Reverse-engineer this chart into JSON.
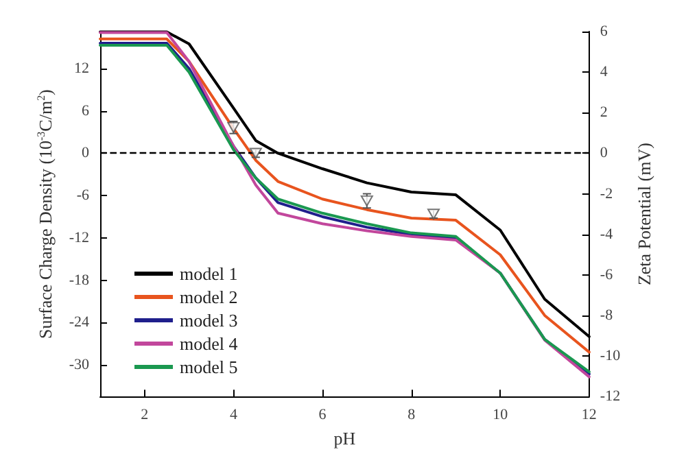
{
  "chart_data": {
    "type": "line",
    "xlabel": "pH",
    "ylabel": "Surface Charge Density (10$^{-3}$C/m$^{2}$)",
    "y2label": "Zeta Potential (mV)",
    "xlim": [
      1,
      12
    ],
    "xticks": [
      2,
      4,
      6,
      8,
      10,
      12
    ],
    "ylim": [
      -34.5,
      17.25
    ],
    "yticks": [
      -30,
      -24,
      -18,
      -12,
      -6,
      0,
      6,
      12
    ],
    "y2lim": [
      -12,
      6
    ],
    "y2ticks": [
      -12,
      -10,
      -8,
      -6,
      -4,
      -2,
      0,
      2,
      4,
      6
    ],
    "x": [
      1,
      2,
      2.5,
      3,
      4,
      4.5,
      5,
      6,
      7,
      8,
      9,
      10,
      11,
      12
    ],
    "series": [
      {
        "name": "model 1",
        "color": "#000000",
        "values": [
          17.2,
          17.2,
          17.2,
          15.5,
          6.4,
          1.8,
          0,
          -2.2,
          -4.2,
          -5.5,
          -5.9,
          -10.9,
          -20.7,
          -26
        ]
      },
      {
        "name": "model 2",
        "color": "#e8541e",
        "values": [
          16.2,
          16.2,
          16.2,
          13,
          3.5,
          -1,
          -4,
          -6.5,
          -8,
          -9.2,
          -9.5,
          -14.4,
          -23,
          -28.2
        ]
      },
      {
        "name": "model 3",
        "color": "#1f1f8c",
        "values": [
          15.6,
          15.6,
          15.6,
          12,
          1,
          -3.5,
          -7,
          -9,
          -10.5,
          -11.5,
          -12,
          -17,
          -26.4,
          -31.3
        ]
      },
      {
        "name": "model 4",
        "color": "#c2479c",
        "values": [
          17.1,
          17.1,
          17.1,
          13,
          1,
          -4.5,
          -8.5,
          -10,
          -11,
          -11.8,
          -12.3,
          -17,
          -26.5,
          -31.7
        ]
      },
      {
        "name": "model 5",
        "color": "#1a9850",
        "values": [
          15.3,
          15.3,
          15.3,
          11.5,
          0.5,
          -3.5,
          -6.5,
          -8.5,
          -10,
          -11.3,
          -11.8,
          -17,
          -26.4,
          -31
        ]
      },
      {
        "type": "scatter",
        "axis": "y2",
        "marker": "triangle-down",
        "color": "#555555",
        "x": [
          4,
          4.5,
          7,
          8.5
        ],
        "values": [
          1.27,
          0,
          -2.35,
          -3.0
        ],
        "errors": [
          0.3,
          0.2,
          0.35,
          0.2
        ]
      }
    ],
    "ref_lines": [
      {
        "axis": "y",
        "value": 0,
        "line_style": "dashed",
        "color": "#000000"
      }
    ],
    "grid": false,
    "legend": "left",
    "marker": "none",
    "line_style": "solid"
  }
}
